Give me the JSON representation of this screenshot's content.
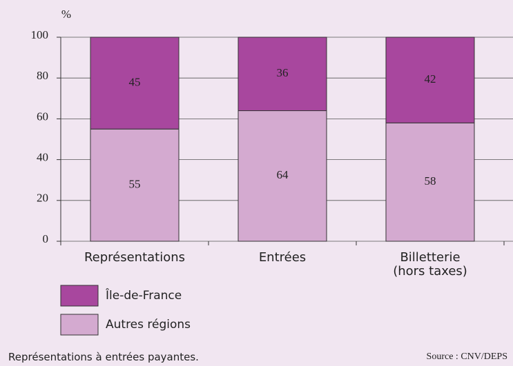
{
  "chart_data": {
    "type": "stacked_bar",
    "y_label": "%",
    "categories": [
      "Représentations",
      "Entrées",
      "Billetterie\n(hors taxes)"
    ],
    "series": [
      {
        "name": "Autres régions",
        "color": "#d4aad0",
        "values": [
          55,
          64,
          58
        ]
      },
      {
        "name": "Île-de-France",
        "color": "#a8479e",
        "values": [
          45,
          36,
          42
        ]
      }
    ],
    "legend_order": [
      1,
      0
    ],
    "ylim": [
      0,
      100
    ],
    "yticks": [
      0,
      20,
      40,
      60,
      80,
      100
    ],
    "grid": true,
    "note": "Représentations à entrées payantes.",
    "source": "Source : CNV/DEPS"
  }
}
